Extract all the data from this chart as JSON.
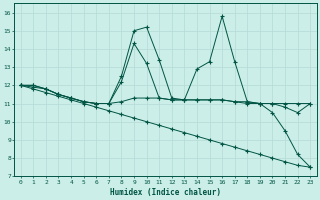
{
  "xlabel": "Humidex (Indice chaleur)",
  "bg_color": "#cceee8",
  "grid_color": "#b8ddd8",
  "line_color": "#005544",
  "xlim": [
    -0.5,
    23.5
  ],
  "ylim": [
    7,
    16.5
  ],
  "yticks": [
    7,
    8,
    9,
    10,
    11,
    12,
    13,
    14,
    15,
    16
  ],
  "xticks": [
    0,
    1,
    2,
    3,
    4,
    5,
    6,
    7,
    8,
    9,
    10,
    11,
    12,
    13,
    14,
    15,
    16,
    17,
    18,
    19,
    20,
    21,
    22,
    23
  ],
  "line1_x": [
    0,
    1,
    2,
    3,
    4,
    5,
    6,
    7,
    8,
    9,
    10,
    11,
    12,
    13,
    14,
    15,
    16,
    17,
    18,
    19,
    20,
    21,
    22,
    23
  ],
  "line1_y": [
    12.0,
    12.0,
    11.8,
    11.5,
    11.3,
    11.1,
    11.0,
    11.0,
    11.1,
    11.3,
    11.3,
    11.3,
    11.2,
    11.2,
    11.2,
    11.2,
    11.2,
    11.1,
    11.1,
    11.0,
    11.0,
    11.0,
    11.0,
    11.0
  ],
  "line2_x": [
    0,
    1,
    2,
    3,
    4,
    5,
    6,
    7,
    8,
    9,
    10,
    11,
    12,
    13,
    14,
    15,
    16,
    17,
    18,
    19,
    20,
    21,
    22,
    23
  ],
  "line2_y": [
    12.0,
    11.9,
    11.8,
    11.5,
    11.3,
    11.1,
    11.0,
    11.0,
    12.5,
    15.0,
    15.2,
    13.4,
    11.3,
    11.2,
    12.9,
    13.3,
    15.8,
    13.3,
    11.1,
    11.0,
    11.0,
    10.8,
    10.5,
    11.0
  ],
  "line3_x": [
    0,
    1,
    2,
    3,
    4,
    5,
    6,
    7,
    8,
    9,
    10,
    11,
    12,
    13,
    14,
    15,
    16,
    17,
    18,
    19,
    20,
    21,
    22,
    23
  ],
  "line3_y": [
    12.0,
    12.0,
    11.8,
    11.5,
    11.3,
    11.1,
    11.0,
    11.0,
    12.2,
    14.3,
    13.2,
    11.3,
    11.2,
    11.2,
    11.2,
    11.2,
    11.2,
    11.1,
    11.0,
    11.0,
    10.5,
    9.5,
    8.2,
    7.5
  ],
  "line4_x": [
    0,
    1,
    2,
    3,
    4,
    5,
    6,
    7,
    8,
    9,
    10,
    11,
    12,
    13,
    14,
    15,
    16,
    17,
    18,
    19,
    20,
    21,
    22,
    23
  ],
  "line4_y": [
    12.0,
    11.8,
    11.6,
    11.4,
    11.2,
    11.0,
    10.8,
    10.6,
    10.4,
    10.2,
    10.0,
    9.8,
    9.6,
    9.4,
    9.2,
    9.0,
    8.8,
    8.6,
    8.4,
    8.2,
    8.0,
    7.8,
    7.6,
    7.5
  ]
}
